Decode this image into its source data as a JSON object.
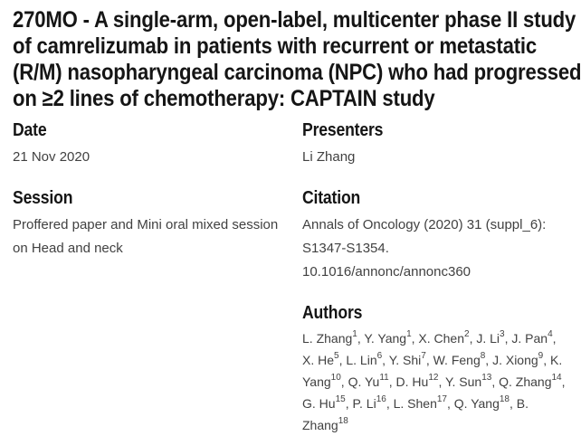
{
  "header": {
    "title": "270MO - A single-arm, open-label, multicenter phase II study of camrelizumab in patients with recurrent or metastatic (R/M) nasopharyngeal carcinoma (NPC) who had progressed on ≥2 lines of chemotherapy: CAPTAIN study",
    "title_lines": [
      "270MO - A single-arm, open-label, multicenter phase II study",
      "of camrelizumab in patients with recurrent or metastatic",
      "(R/M) nasopharyngeal carcinoma (NPC) who had progressed",
      "on ≥2 lines of chemotherapy: CAPTAIN study"
    ]
  },
  "sections": {
    "date": {
      "label": "Date",
      "value": "21 Nov 2020"
    },
    "session": {
      "label": "Session",
      "value": "Proffered paper and Mini oral mixed session on Head and neck"
    },
    "presenters": {
      "label": "Presenters",
      "value": "Li Zhang"
    },
    "citation": {
      "label": "Citation",
      "value": "Annals of Oncology (2020) 31 (suppl_6): S1347-S1354. 10.1016/annonc/annonc360"
    },
    "authors": {
      "label": "Authors",
      "list": [
        {
          "name": "L. Zhang",
          "affiliation": "1"
        },
        {
          "name": "Y. Yang",
          "affiliation": "1"
        },
        {
          "name": "X. Chen",
          "affiliation": "2"
        },
        {
          "name": "J. Li",
          "affiliation": "3"
        },
        {
          "name": "J. Pan",
          "affiliation": "4"
        },
        {
          "name": "X. He",
          "affiliation": "5"
        },
        {
          "name": "L. Lin",
          "affiliation": "6"
        },
        {
          "name": "Y. Shi",
          "affiliation": "7"
        },
        {
          "name": "W. Feng",
          "affiliation": "8"
        },
        {
          "name": "J. Xiong",
          "affiliation": "9"
        },
        {
          "name": "K. Yang",
          "affiliation": "10"
        },
        {
          "name": "Q. Yu",
          "affiliation": "11"
        },
        {
          "name": "D. Hu",
          "affiliation": "12"
        },
        {
          "name": "Y. Sun",
          "affiliation": "13"
        },
        {
          "name": "Q. Zhang",
          "affiliation": "14"
        },
        {
          "name": "G. Hu",
          "affiliation": "15"
        },
        {
          "name": "P. Li",
          "affiliation": "16"
        },
        {
          "name": "L. Shen",
          "affiliation": "17"
        },
        {
          "name": "Q. Yang",
          "affiliation": "18"
        },
        {
          "name": "B. Zhang",
          "affiliation": "18"
        }
      ]
    }
  },
  "colors": {
    "background": "#ffffff",
    "heading_text": "#151515",
    "body_text": "#414141"
  }
}
